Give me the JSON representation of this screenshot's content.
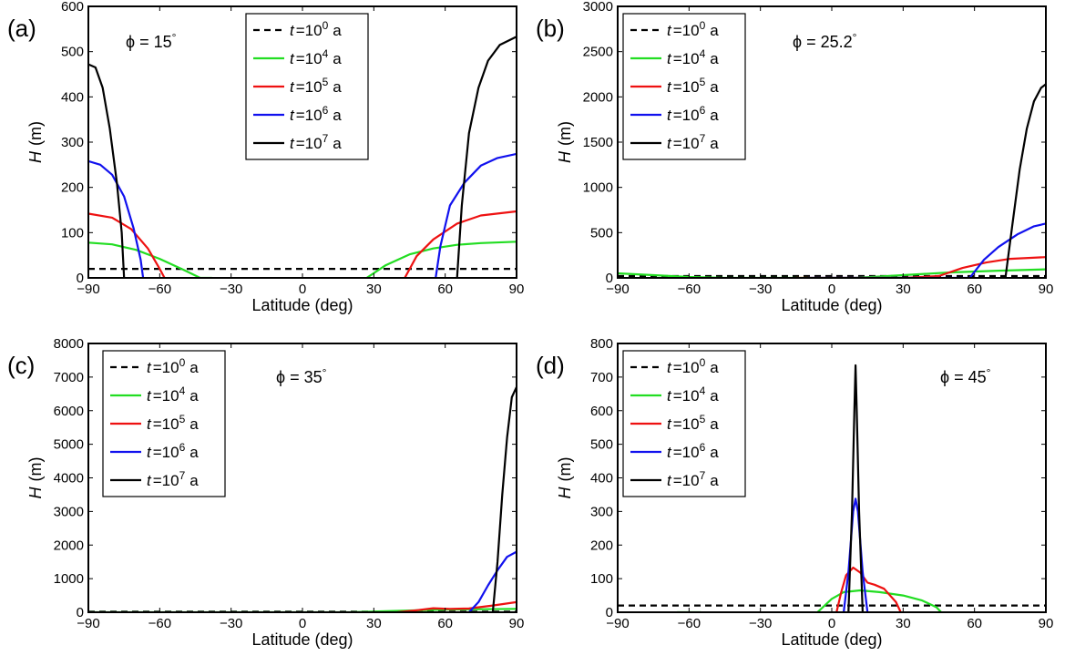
{
  "chart_data": [
    {
      "type": "line",
      "panel_label": "(a)",
      "annotation": "ϕ = 15°",
      "xlabel": "Latitude (deg)",
      "ylabel": "H (m)",
      "xlim": [
        -90,
        90
      ],
      "ylim": [
        0,
        600
      ],
      "xticks": [
        -90,
        -60,
        -30,
        0,
        30,
        60,
        90
      ],
      "yticks": [
        0,
        100,
        200,
        300,
        400,
        500,
        600
      ],
      "legend_position": "top-center",
      "series": [
        {
          "name": "t =10^0 a",
          "color": "#000000",
          "dash": "dashed",
          "points": [
            [
              -90,
              20
            ],
            [
              90,
              20
            ]
          ]
        },
        {
          "name": "t =10^4 a",
          "color": "#22dd22",
          "dash": "solid",
          "points": [
            [
              -90,
              78
            ],
            [
              -80,
              74
            ],
            [
              -70,
              62
            ],
            [
              -60,
              42
            ],
            [
              -50,
              18
            ],
            [
              -43,
              0
            ],
            [
              -38,
              0
            ]
          ]
        },
        {
          "name": "t =10^4 a",
          "color": "#22dd22",
          "dash": "solid",
          "points": [
            [
              27,
              0
            ],
            [
              35,
              28
            ],
            [
              45,
              52
            ],
            [
              55,
              65
            ],
            [
              65,
              73
            ],
            [
              75,
              77
            ],
            [
              90,
              80
            ]
          ]
        },
        {
          "name": "t =10^5 a",
          "color": "#ee1111",
          "dash": "solid",
          "points": [
            [
              -90,
              142
            ],
            [
              -80,
              133
            ],
            [
              -72,
              108
            ],
            [
              -65,
              65
            ],
            [
              -60,
              20
            ],
            [
              -58,
              0
            ]
          ]
        },
        {
          "name": "t =10^5 a",
          "color": "#ee1111",
          "dash": "solid",
          "points": [
            [
              43,
              0
            ],
            [
              48,
              48
            ],
            [
              55,
              85
            ],
            [
              65,
              120
            ],
            [
              75,
              138
            ],
            [
              90,
              147
            ]
          ]
        },
        {
          "name": "t =10^6 a",
          "color": "#1111ee",
          "dash": "solid",
          "points": [
            [
              -90,
              258
            ],
            [
              -85,
              250
            ],
            [
              -80,
              228
            ],
            [
              -75,
              180
            ],
            [
              -71,
              110
            ],
            [
              -68,
              40
            ],
            [
              -67,
              0
            ]
          ]
        },
        {
          "name": "t =10^6 a",
          "color": "#1111ee",
          "dash": "solid",
          "points": [
            [
              56,
              0
            ],
            [
              58,
              70
            ],
            [
              62,
              160
            ],
            [
              68,
              210
            ],
            [
              75,
              248
            ],
            [
              82,
              265
            ],
            [
              90,
              274
            ]
          ]
        },
        {
          "name": "t =10^7 a",
          "color": "#000000",
          "dash": "solid",
          "points": [
            [
              -90,
              472
            ],
            [
              -87,
              465
            ],
            [
              -84,
              420
            ],
            [
              -81,
              330
            ],
            [
              -78,
              210
            ],
            [
              -76,
              100
            ],
            [
              -75,
              0
            ]
          ]
        },
        {
          "name": "t =10^7 a",
          "color": "#000000",
          "dash": "solid",
          "points": [
            [
              65,
              0
            ],
            [
              67,
              160
            ],
            [
              70,
              320
            ],
            [
              74,
              420
            ],
            [
              78,
              480
            ],
            [
              83,
              515
            ],
            [
              90,
              533
            ]
          ]
        }
      ]
    },
    {
      "type": "line",
      "panel_label": "(b)",
      "annotation": "ϕ = 25.2°",
      "xlabel": "Latitude (deg)",
      "ylabel": "H (m)",
      "xlim": [
        -90,
        90
      ],
      "ylim": [
        0,
        3000
      ],
      "xticks": [
        -90,
        -60,
        -30,
        0,
        30,
        60,
        90
      ],
      "yticks": [
        0,
        500,
        1000,
        1500,
        2000,
        2500,
        3000
      ],
      "legend_position": "top-left",
      "series": [
        {
          "name": "t =10^0 a",
          "color": "#000000",
          "dash": "dashed",
          "points": [
            [
              -90,
              20
            ],
            [
              90,
              20
            ]
          ]
        },
        {
          "name": "t =10^4 a",
          "color": "#22dd22",
          "dash": "solid",
          "points": [
            [
              -90,
              50
            ],
            [
              -75,
              30
            ],
            [
              -60,
              10
            ],
            [
              -45,
              0
            ],
            [
              10,
              0
            ],
            [
              30,
              30
            ],
            [
              50,
              60
            ],
            [
              70,
              80
            ],
            [
              90,
              95
            ]
          ]
        },
        {
          "name": "t =10^5 a",
          "color": "#ee1111",
          "dash": "solid",
          "points": [
            [
              -15,
              0
            ],
            [
              0,
              0
            ],
            [
              30,
              0
            ],
            [
              45,
              20
            ],
            [
              55,
              110
            ],
            [
              65,
              170
            ],
            [
              75,
              210
            ],
            [
              90,
              230
            ]
          ]
        },
        {
          "name": "t =10^6 a",
          "color": "#1111ee",
          "dash": "solid",
          "points": [
            [
              -10,
              0
            ],
            [
              10,
              0
            ],
            [
              58,
              0
            ],
            [
              64,
              200
            ],
            [
              70,
              340
            ],
            [
              78,
              480
            ],
            [
              85,
              570
            ],
            [
              90,
              600
            ]
          ]
        },
        {
          "name": "t =10^7 a",
          "color": "#000000",
          "dash": "solid",
          "points": [
            [
              73,
              0
            ],
            [
              76,
              600
            ],
            [
              79,
              1200
            ],
            [
              82,
              1650
            ],
            [
              85,
              1950
            ],
            [
              88,
              2100
            ],
            [
              90,
              2140
            ]
          ]
        }
      ]
    },
    {
      "type": "line",
      "panel_label": "(c)",
      "annotation": "ϕ = 35°",
      "xlabel": "Latitude (deg)",
      "ylabel": "H (m)",
      "xlim": [
        -90,
        90
      ],
      "ylim": [
        0,
        8000
      ],
      "xticks": [
        -90,
        -60,
        -30,
        0,
        30,
        60,
        90
      ],
      "yticks": [
        0,
        1000,
        2000,
        3000,
        4000,
        5000,
        6000,
        7000,
        8000
      ],
      "legend_position": "top-left",
      "series": [
        {
          "name": "t =10^0 a",
          "color": "#000000",
          "dash": "dashed",
          "points": [
            [
              -90,
              20
            ],
            [
              90,
              20
            ]
          ]
        },
        {
          "name": "t =10^4 a",
          "color": "#22dd22",
          "dash": "solid",
          "points": [
            [
              -90,
              0
            ],
            [
              20,
              0
            ],
            [
              40,
              40
            ],
            [
              60,
              80
            ],
            [
              75,
              90
            ],
            [
              90,
              100
            ]
          ]
        },
        {
          "name": "t =10^5 a",
          "color": "#ee1111",
          "dash": "solid",
          "points": [
            [
              40,
              0
            ],
            [
              48,
              60
            ],
            [
              55,
              120
            ],
            [
              62,
              100
            ],
            [
              70,
              110
            ],
            [
              80,
              200
            ],
            [
              90,
              300
            ]
          ]
        },
        {
          "name": "t =10^6 a",
          "color": "#1111ee",
          "dash": "solid",
          "points": [
            [
              70,
              0
            ],
            [
              74,
              300
            ],
            [
              78,
              800
            ],
            [
              82,
              1250
            ],
            [
              86,
              1650
            ],
            [
              90,
              1800
            ]
          ]
        },
        {
          "name": "t =10^7 a",
          "color": "#000000",
          "dash": "solid",
          "points": [
            [
              80,
              0
            ],
            [
              82,
              1500
            ],
            [
              84,
              3500
            ],
            [
              86,
              5200
            ],
            [
              88,
              6400
            ],
            [
              90,
              6700
            ]
          ]
        }
      ]
    },
    {
      "type": "line",
      "panel_label": "(d)",
      "annotation": "ϕ = 45°",
      "xlabel": "Latitude (deg)",
      "ylabel": "H (m)",
      "xlim": [
        -90,
        90
      ],
      "ylim": [
        0,
        800
      ],
      "xticks": [
        -90,
        -60,
        -30,
        0,
        30,
        60,
        90
      ],
      "yticks": [
        0,
        100,
        200,
        300,
        400,
        500,
        600,
        700,
        800
      ],
      "legend_position": "top-left",
      "series": [
        {
          "name": "t =10^0 a",
          "color": "#000000",
          "dash": "dashed",
          "points": [
            [
              -90,
              20
            ],
            [
              90,
              20
            ]
          ]
        },
        {
          "name": "t =10^4 a",
          "color": "#22dd22",
          "dash": "solid",
          "points": [
            [
              -6,
              0
            ],
            [
              0,
              40
            ],
            [
              5,
              60
            ],
            [
              12,
              65
            ],
            [
              20,
              60
            ],
            [
              30,
              50
            ],
            [
              38,
              35
            ],
            [
              44,
              15
            ],
            [
              46,
              0
            ]
          ]
        },
        {
          "name": "t =10^4 a",
          "color": "#22dd22",
          "dash": "solid",
          "points": [
            [
              -65,
              0
            ],
            [
              -55,
              0
            ]
          ]
        },
        {
          "name": "t =10^5 a",
          "color": "#ee1111",
          "dash": "solid",
          "points": [
            [
              2,
              0
            ],
            [
              4,
              60
            ],
            [
              6,
              110
            ],
            [
              9,
              133
            ],
            [
              12,
              118
            ],
            [
              15,
              88
            ],
            [
              18,
              82
            ],
            [
              22,
              70
            ],
            [
              27,
              30
            ],
            [
              29,
              0
            ]
          ]
        },
        {
          "name": "t =10^6 a",
          "color": "#1111ee",
          "dash": "solid",
          "points": [
            [
              5,
              0
            ],
            [
              7,
              120
            ],
            [
              9,
              300
            ],
            [
              10,
              338
            ],
            [
              11,
              300
            ],
            [
              13,
              120
            ],
            [
              15,
              0
            ]
          ]
        },
        {
          "name": "t =10^7 a",
          "color": "#000000",
          "dash": "solid",
          "points": [
            [
              7,
              0
            ],
            [
              8.5,
              300
            ],
            [
              9.5,
              600
            ],
            [
              10,
              735
            ],
            [
              10.5,
              600
            ],
            [
              11.5,
              300
            ],
            [
              13,
              0
            ]
          ]
        }
      ]
    }
  ]
}
